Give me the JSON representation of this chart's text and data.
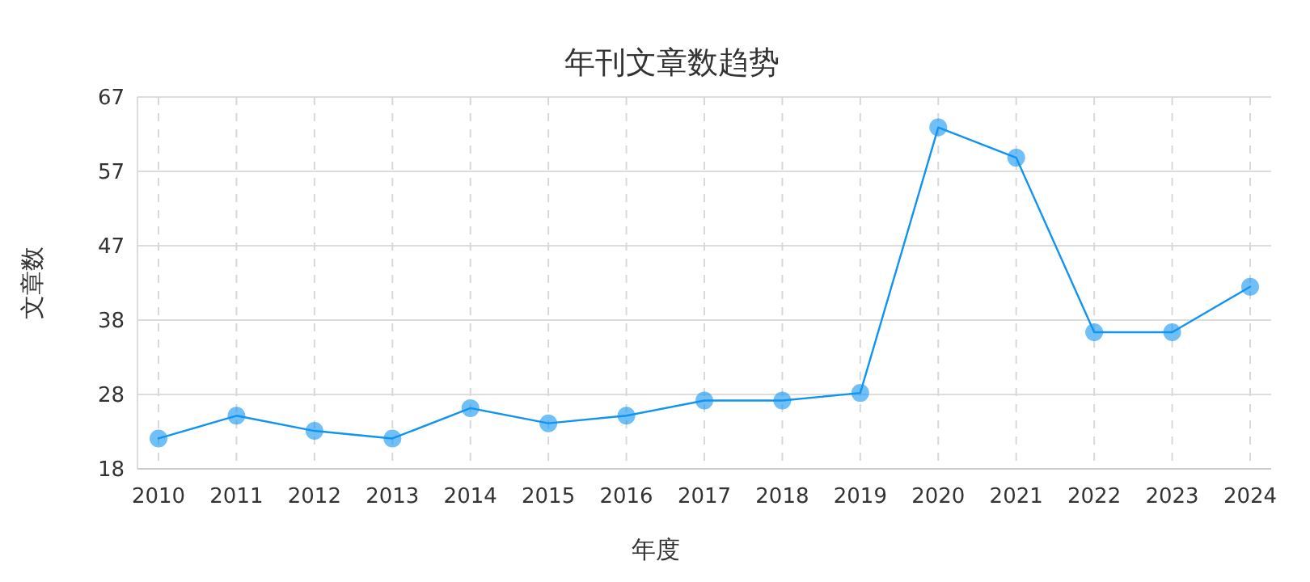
{
  "chart_data": {
    "type": "line",
    "title": "年刊文章数趋势",
    "xlabel": "年度",
    "ylabel": "文章数",
    "categories": [
      "2010",
      "2011",
      "2012",
      "2013",
      "2014",
      "2015",
      "2016",
      "2017",
      "2018",
      "2019",
      "2020",
      "2021",
      "2022",
      "2023",
      "2024"
    ],
    "series": [
      {
        "color": "#1094f0",
        "values": [
          22,
          25,
          23,
          22,
          26,
          24,
          25,
          27,
          27,
          28,
          63,
          59,
          36,
          36,
          42
        ]
      }
    ],
    "ylim": [
      18,
      67
    ],
    "yticks": [
      18,
      {
        "value": 27.8,
        "label": "28"
      },
      {
        "value": 37.6,
        "label": "38"
      },
      {
        "value": 47.4,
        "label": "47"
      },
      {
        "value": 57.2,
        "label": "57"
      },
      67
    ],
    "grid": true,
    "marker": "circle",
    "line_style": "solid"
  }
}
